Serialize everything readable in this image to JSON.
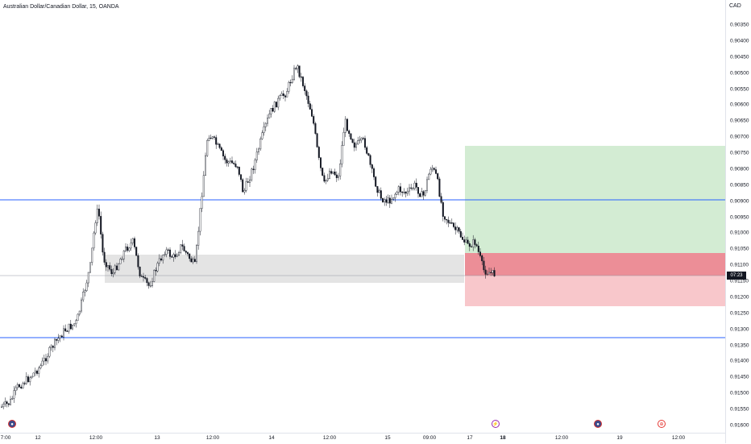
{
  "chart": {
    "title": "Australian Dollar/Canadian Dollar, 15, OANDA",
    "currency": "CAD",
    "current_price_tag": "07:23"
  },
  "price_axis": {
    "labels": [
      "0.90350",
      "0.90400",
      "0.90450",
      "0.90500",
      "0.90550",
      "0.90600",
      "0.90650",
      "0.90700",
      "0.90750",
      "0.90800",
      "0.90850",
      "0.90900",
      "0.90950",
      "0.91000",
      "0.91050",
      "0.91100",
      "0.91150",
      "0.91200",
      "0.91250",
      "0.91300",
      "0.91350",
      "0.91400",
      "0.91450",
      "0.91500",
      "0.91550",
      "0.91600"
    ]
  },
  "time_axis": {
    "labels": [
      {
        "text": "7:00",
        "bold": false
      },
      {
        "text": "12",
        "bold": false
      },
      {
        "text": "12:00",
        "bold": false
      },
      {
        "text": "13",
        "bold": false
      },
      {
        "text": "12:00",
        "bold": false
      },
      {
        "text": "14",
        "bold": false
      },
      {
        "text": "12:00",
        "bold": false
      },
      {
        "text": "15",
        "bold": false
      },
      {
        "text": "09:00",
        "bold": false
      },
      {
        "text": "17",
        "bold": false
      },
      {
        "text": "18",
        "bold": true
      },
      {
        "text": "12:00",
        "bold": false
      },
      {
        "text": "19",
        "bold": false
      },
      {
        "text": "12:00",
        "bold": false
      }
    ]
  },
  "colors": {
    "horizontal_lines": "#2962ff",
    "profit_zone": "#d3ecd3",
    "loss_zone": "#f8c7cb",
    "loss_zone_dark": "#ec8e97",
    "support_zone": "#e4e4e4",
    "candles": "#131722"
  },
  "events": [
    {
      "icon": "flag-icon",
      "glyph": "●"
    },
    {
      "icon": "lightning-icon",
      "glyph": "⚡"
    },
    {
      "icon": "flag-icon",
      "glyph": "●"
    },
    {
      "icon": "event-icon",
      "glyph": "⊕"
    }
  ]
}
